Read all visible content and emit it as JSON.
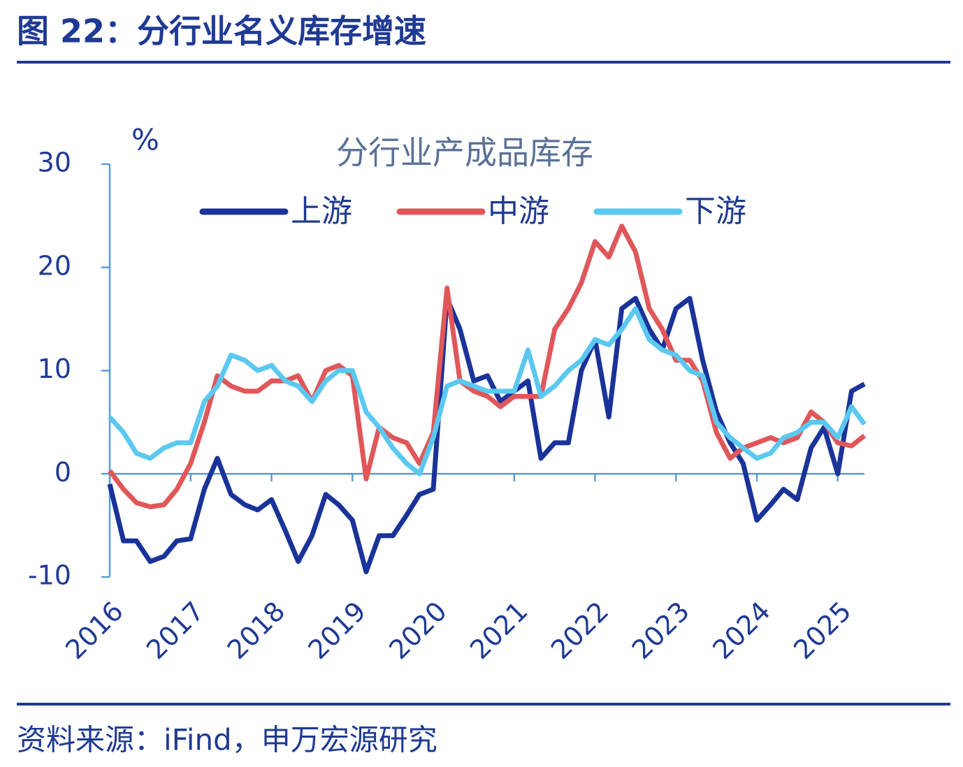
{
  "header": {
    "title": "图 22：分行业名义库存增速"
  },
  "footer": {
    "source": "资料来源：iFind，申万宏源研究"
  },
  "chart_data": {
    "type": "line",
    "title": "分行业产成品库存",
    "y_label": "%",
    "x": [
      2016,
      2016.17,
      2016.33,
      2016.5,
      2016.67,
      2016.83,
      2017,
      2017.17,
      2017.33,
      2017.5,
      2017.67,
      2017.83,
      2018,
      2018.17,
      2018.33,
      2018.5,
      2018.67,
      2018.83,
      2019,
      2019.17,
      2019.33,
      2019.5,
      2019.67,
      2019.83,
      2020,
      2020.17,
      2020.33,
      2020.5,
      2020.67,
      2020.83,
      2021,
      2021.17,
      2021.33,
      2021.5,
      2021.67,
      2021.83,
      2022,
      2022.17,
      2022.33,
      2022.5,
      2022.67,
      2022.83,
      2023,
      2023.17,
      2023.33,
      2023.5,
      2023.67,
      2023.83,
      2024,
      2024.17,
      2024.33,
      2024.5,
      2024.67,
      2024.83,
      2025,
      2025.17,
      2025.33
    ],
    "series": [
      {
        "name": "上游",
        "color": "#1a3399",
        "values": [
          -1,
          -6.5,
          -6.5,
          -8.5,
          -8,
          -6.5,
          -6.3,
          -1.5,
          1.5,
          -2,
          -3,
          -3.5,
          -2.5,
          -5.5,
          -8.5,
          -6,
          -2,
          -3,
          -4.5,
          -9.5,
          -6,
          -6,
          -4,
          -2,
          -1.5,
          17,
          14,
          9,
          9.5,
          7,
          8,
          9,
          1.5,
          3,
          3,
          10,
          13,
          5.5,
          16,
          17,
          14,
          12,
          16,
          17,
          11,
          6,
          3,
          1,
          -4.5,
          -3,
          -1.5,
          -2.5,
          2.5,
          4.5,
          0,
          8,
          8.7
        ]
      },
      {
        "name": "中游",
        "color": "#e0575a",
        "values": [
          0.3,
          -1.5,
          -2.8,
          -3.2,
          -3,
          -1.5,
          1,
          5,
          9.5,
          8.5,
          8,
          8,
          9,
          9,
          9.5,
          7,
          10,
          10.5,
          9.5,
          -0.5,
          4.5,
          3.5,
          3,
          1,
          4,
          18,
          9,
          8,
          7.5,
          6.5,
          7.5,
          7.5,
          7.5,
          14,
          16,
          18.5,
          22.5,
          21,
          24,
          21.5,
          16,
          14,
          11,
          11,
          9,
          4,
          1.5,
          2.5,
          3,
          3.5,
          3,
          3.5,
          6,
          5,
          3,
          2.7,
          3.7
        ]
      },
      {
        "name": "下游",
        "color": "#5bc8f0",
        "values": [
          5.5,
          4,
          2,
          1.5,
          2.5,
          3,
          3,
          7,
          8.5,
          11.5,
          11,
          10,
          10.5,
          9,
          8.5,
          7,
          9,
          10,
          10,
          6,
          4.5,
          2.5,
          1,
          0,
          3.5,
          8.5,
          9,
          8.5,
          8,
          8,
          8,
          12,
          7.5,
          8.5,
          10,
          11,
          13,
          12.5,
          14,
          16,
          13,
          12,
          11.5,
          10,
          9.5,
          5,
          3.5,
          2.5,
          1.5,
          2,
          3.5,
          4,
          5,
          5,
          3.5,
          6.5,
          4.8
        ]
      }
    ],
    "xlim": [
      2016,
      2025.33
    ],
    "xticks": [
      2016,
      2017,
      2018,
      2019,
      2020,
      2021,
      2022,
      2023,
      2024,
      2025
    ],
    "ylim": [
      -10,
      30
    ],
    "yticks": [
      -10,
      0,
      10,
      20,
      30
    ],
    "grid": false
  }
}
